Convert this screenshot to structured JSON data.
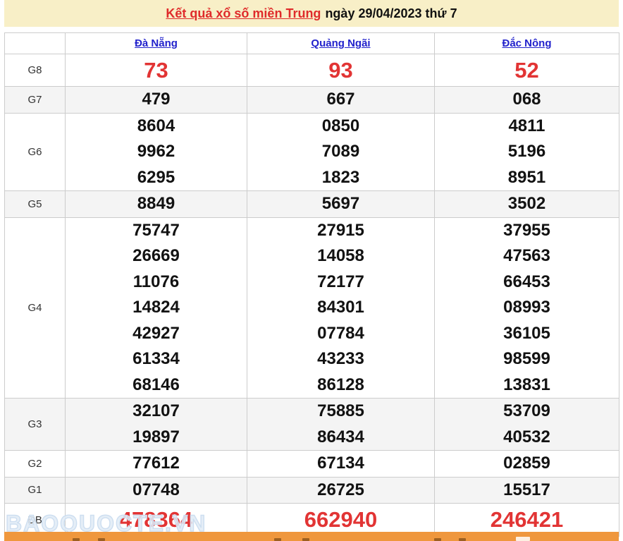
{
  "banner": {
    "title_link": "Kết quả xổ số miền Trung",
    "title_date": "ngày 29/04/2023 thứ 7"
  },
  "table": {
    "corner_label": "",
    "columns": [
      "Đà Nẵng",
      "Quảng Ngãi",
      "Đắc Nông"
    ],
    "rows": [
      {
        "label": "G8",
        "big": true,
        "shaded": false,
        "values": [
          [
            "73"
          ],
          [
            "93"
          ],
          [
            "52"
          ]
        ]
      },
      {
        "label": "G7",
        "big": false,
        "shaded": true,
        "values": [
          [
            "479"
          ],
          [
            "667"
          ],
          [
            "068"
          ]
        ]
      },
      {
        "label": "G6",
        "big": false,
        "shaded": false,
        "values": [
          [
            "8604",
            "9962",
            "6295"
          ],
          [
            "0850",
            "7089",
            "1823"
          ],
          [
            "4811",
            "5196",
            "8951"
          ]
        ]
      },
      {
        "label": "G5",
        "big": false,
        "shaded": true,
        "values": [
          [
            "8849"
          ],
          [
            "5697"
          ],
          [
            "3502"
          ]
        ]
      },
      {
        "label": "G4",
        "big": false,
        "shaded": false,
        "values": [
          [
            "75747",
            "26669",
            "11076",
            "14824",
            "42927",
            "61334",
            "68146"
          ],
          [
            "27915",
            "14058",
            "72177",
            "84301",
            "07784",
            "43233",
            "86128"
          ],
          [
            "37955",
            "47563",
            "66453",
            "08993",
            "36105",
            "98599",
            "13831"
          ]
        ]
      },
      {
        "label": "G3",
        "big": false,
        "shaded": true,
        "values": [
          [
            "32107",
            "19897"
          ],
          [
            "75885",
            "86434"
          ],
          [
            "53709",
            "40532"
          ]
        ]
      },
      {
        "label": "G2",
        "big": false,
        "shaded": false,
        "values": [
          [
            "77612"
          ],
          [
            "67134"
          ],
          [
            "02859"
          ]
        ]
      },
      {
        "label": "G1",
        "big": false,
        "shaded": true,
        "values": [
          [
            "07748"
          ],
          [
            "26725"
          ],
          [
            "15517"
          ]
        ]
      },
      {
        "label": "ĐB",
        "big": true,
        "shaded": false,
        "values": [
          [
            "478364"
          ],
          [
            "662940"
          ],
          [
            "246421"
          ]
        ]
      }
    ]
  },
  "watermark": "BAOQUOCTE.VN",
  "colors": {
    "banner_bg": "#F8EFC7",
    "footer_bg": "#EF973D",
    "red_accent": "#E23434",
    "title_red": "#DF2B2B",
    "link_blue": "#2222CC",
    "stripe_gray": "#F4F4F4",
    "border_gray": "#CCCCCC"
  }
}
